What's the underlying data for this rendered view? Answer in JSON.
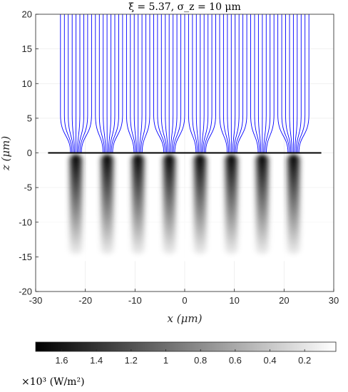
{
  "chart_data": {
    "type": "heatmap",
    "title": "ξ = 5.37, σ_z = 10 μm",
    "xlabel": "x (μm)",
    "ylabel": "z (μm)",
    "xlim": [
      -30,
      30
    ],
    "ylim": [
      -20,
      20
    ],
    "xticks": [
      -30,
      -20,
      -10,
      0,
      10,
      20,
      30
    ],
    "yticks": [
      -20,
      -15,
      -10,
      -5,
      0,
      5,
      10,
      15,
      20
    ],
    "grid": true,
    "stripe_centers_x": [
      -21.9,
      -15.6,
      -9.4,
      -3.1,
      3.1,
      9.4,
      15.6,
      21.9
    ],
    "stripe_period": 6.25,
    "interface_line": {
      "z": 0,
      "x_range": [
        -27.5,
        27.5
      ],
      "color": "#000000"
    },
    "field_lines": {
      "color": "#0000ff",
      "x_range": [
        -25,
        25
      ],
      "z_range": [
        0,
        20
      ],
      "count_per_period": 8
    },
    "intensity_map": {
      "z_range": [
        -15,
        0
      ],
      "color_low": "#ffffff",
      "color_high": "#000000"
    },
    "colorbar": {
      "orientation": "horizontal",
      "ticks": [
        "1.6",
        "1.4",
        "1.2",
        "1",
        "0.8",
        "0.6",
        "0.4",
        "0.2"
      ],
      "tick_values": [
        1.6,
        1.4,
        1.2,
        1.0,
        0.8,
        0.6,
        0.4,
        0.2
      ],
      "range": [
        1.75,
        0.02
      ],
      "label": "×10³ (W/m²)"
    }
  }
}
